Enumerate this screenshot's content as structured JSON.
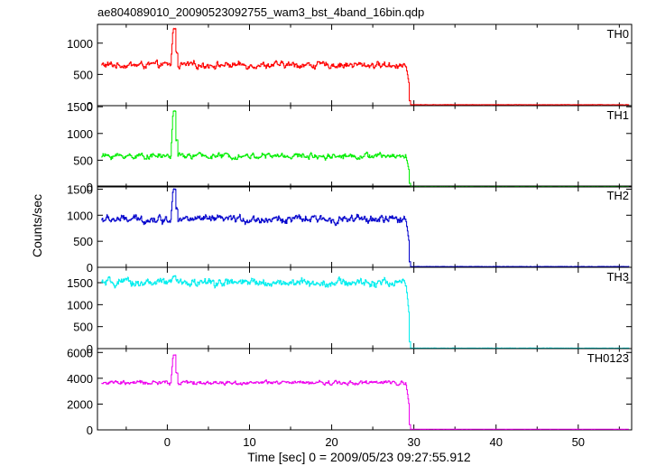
{
  "chart_data": {
    "type": "line",
    "title": "ae804089010_20090523092755_wam3_bst_4band_16bin.qdp",
    "xlabel": "Time [sec] 0 = 2009/05/23 09:27:55.912",
    "ylabel": "Counts/sec",
    "xlim": [
      -8.5,
      56.5
    ],
    "x_ticks": [
      0,
      10,
      20,
      30,
      40,
      50
    ],
    "x_tick_labels": [
      "0",
      "10",
      "20",
      "30",
      "40",
      "50"
    ],
    "grid": false,
    "legend": "none",
    "shared_x": true,
    "features": {
      "spike_start": 0.4,
      "spike_end": 1.0,
      "drop_start": 29.0,
      "drop_end": 29.4,
      "data_start": -8.0
    },
    "series": [
      {
        "name": "TH0",
        "color": "#ff0000",
        "ylim": [
          0,
          1300
        ],
        "y_ticks": [
          0,
          500,
          1000
        ],
        "y_tick_labels": [
          "0",
          "500",
          "1000"
        ],
        "baseline": 650,
        "noise": 40,
        "spike_peak": 1230,
        "after_drop": 15
      },
      {
        "name": "TH1",
        "color": "#00ee00",
        "ylim": [
          0,
          1520
        ],
        "y_ticks": [
          0,
          500,
          1000,
          1500
        ],
        "y_tick_labels": [
          "0",
          "500",
          "1000",
          "1500"
        ],
        "baseline": 580,
        "noise": 40,
        "spike_peak": 1420,
        "after_drop": 12
      },
      {
        "name": "TH2",
        "color": "#0000cc",
        "ylim": [
          0,
          1560
        ],
        "y_ticks": [
          0,
          500,
          1000,
          1500
        ],
        "y_tick_labels": [
          "0",
          "500",
          "1000",
          "1500"
        ],
        "baseline": 920,
        "noise": 55,
        "spike_peak": 1500,
        "after_drop": 15
      },
      {
        "name": "TH3",
        "color": "#00eeee",
        "ylim": [
          0,
          1850
        ],
        "y_ticks": [
          0,
          500,
          1000,
          1500
        ],
        "y_tick_labels": [
          "0",
          "500",
          "1000",
          "1500"
        ],
        "baseline": 1500,
        "noise": 70,
        "spike_peak": 1650,
        "after_drop": 10
      },
      {
        "name": "TH0123",
        "color": "#ee00ee",
        "ylim": [
          0,
          6300
        ],
        "y_ticks": [
          0,
          2000,
          4000,
          6000
        ],
        "y_tick_labels": [
          "0",
          "2000",
          "4000",
          "6000"
        ],
        "baseline": 3650,
        "noise": 120,
        "spike_peak": 5800,
        "after_drop": 50
      }
    ]
  }
}
